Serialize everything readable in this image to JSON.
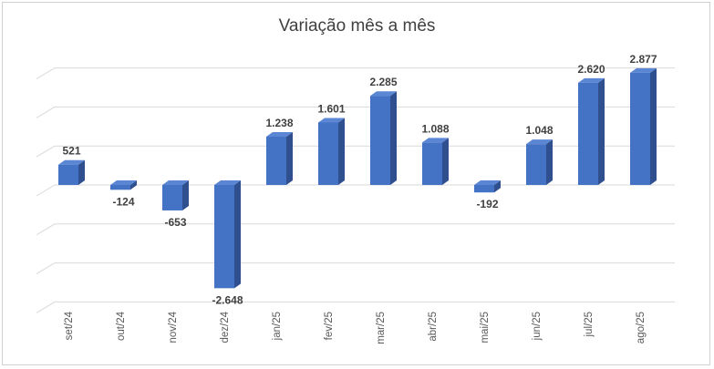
{
  "chart_data": {
    "type": "bar",
    "title": "Variação mês a mês",
    "categories": [
      "set/24",
      "out/24",
      "nov/24",
      "dez/24",
      "jan/25",
      "fev/25",
      "mar/25",
      "abr/25",
      "mai/25",
      "jun/25",
      "jul/25",
      "ago/25"
    ],
    "values": [
      521,
      -124,
      -653,
      -2648,
      1238,
      1601,
      2285,
      1088,
      -192,
      1048,
      2620,
      2877
    ],
    "value_labels": [
      "521",
      "-124",
      "-653",
      "-2.648",
      "1.238",
      "1.601",
      "2.285",
      "1.088",
      "-192",
      "1.048",
      "2.620",
      "2.877"
    ],
    "ylim": [
      -3000,
      3000
    ],
    "gridline_step": 1000,
    "xlabel": "",
    "ylabel": "",
    "grid": true,
    "legend": "none",
    "style": "3d-column"
  },
  "colors": {
    "bar_front": "#4472c4",
    "bar_top": "#5b86d3",
    "bar_side": "#2f4f8f",
    "gridline": "#d9d9d9"
  }
}
